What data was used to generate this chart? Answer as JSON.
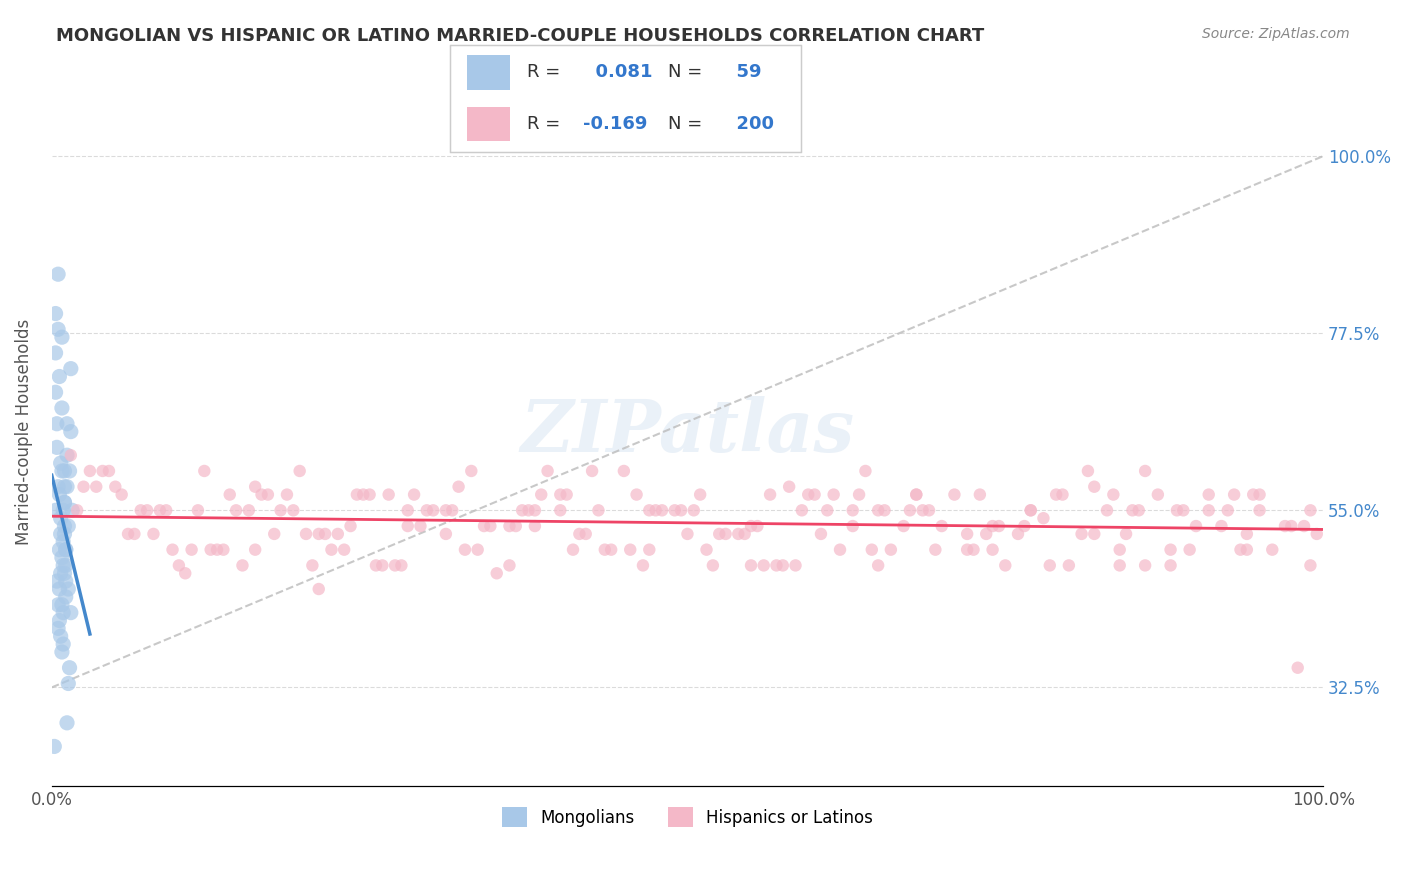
{
  "title": "MONGOLIAN VS HISPANIC OR LATINO MARRIED-COUPLE HOUSEHOLDS CORRELATION CHART",
  "source": "Source: ZipAtlas.com",
  "xlabel": "",
  "ylabel": "Married-couple Households",
  "xlim": [
    0.0,
    100.0
  ],
  "ylim": [
    20.0,
    110.0
  ],
  "ytick_labels": [
    "32.5%",
    "55.0%",
    "77.5%",
    "100.0%"
  ],
  "ytick_values": [
    32.5,
    55.0,
    77.5,
    100.0
  ],
  "xtick_labels": [
    "0.0%",
    "100.0%"
  ],
  "xtick_values": [
    0.0,
    100.0
  ],
  "legend_R_mongolian": "0.081",
  "legend_N_mongolian": "59",
  "legend_R_hispanic": "-0.169",
  "legend_N_hispanic": "200",
  "color_mongolian": "#a8c8e8",
  "color_hispanic": "#f4b8c8",
  "color_mongolian_line": "#4488cc",
  "color_hispanic_line": "#ee4466",
  "color_diag_line": "#bbbbbb",
  "background_color": "#ffffff",
  "watermark": "ZIPatlas",
  "mongolian_x": [
    0.5,
    0.8,
    1.0,
    1.2,
    1.5,
    0.3,
    0.6,
    0.9,
    1.1,
    1.4,
    0.4,
    0.7,
    1.0,
    1.3,
    1.6,
    0.5,
    0.8,
    1.1,
    0.2,
    0.9,
    1.0,
    0.6,
    1.2,
    0.8,
    1.5,
    0.3,
    0.7,
    1.0,
    0.5,
    0.9,
    1.1,
    0.4,
    0.6,
    1.3,
    0.8,
    1.0,
    0.7,
    1.2,
    0.5,
    0.9,
    1.4,
    0.6,
    0.8,
    1.1,
    0.3,
    0.7,
    1.0,
    1.3,
    0.5,
    1.2,
    0.8,
    0.4,
    1.5,
    0.9,
    0.6,
    1.1,
    0.7,
    0.3,
    1.0
  ],
  "mongolian_y": [
    85.0,
    77.0,
    60.0,
    58.0,
    65.0,
    70.0,
    50.0,
    55.0,
    48.0,
    60.0,
    63.0,
    52.0,
    47.0,
    45.0,
    55.0,
    58.0,
    43.0,
    50.0,
    25.0,
    48.0,
    52.0,
    57.0,
    62.0,
    68.0,
    42.0,
    55.0,
    47.0,
    53.0,
    40.0,
    38.0,
    44.0,
    46.0,
    72.0,
    53.0,
    49.0,
    56.0,
    61.0,
    66.0,
    78.0,
    42.0,
    35.0,
    45.0,
    37.0,
    50.0,
    80.0,
    54.0,
    58.0,
    33.0,
    43.0,
    28.0,
    60.0,
    66.0,
    73.0,
    51.0,
    41.0,
    46.0,
    39.0,
    75.0,
    56.0
  ],
  "hispanic_x": [
    2.0,
    5.0,
    8.0,
    12.0,
    15.0,
    18.0,
    22.0,
    25.0,
    28.0,
    32.0,
    35.0,
    38.0,
    42.0,
    45.0,
    48.0,
    52.0,
    55.0,
    58.0,
    62.0,
    65.0,
    68.0,
    72.0,
    75.0,
    78.0,
    82.0,
    85.0,
    88.0,
    92.0,
    95.0,
    98.0,
    3.0,
    7.0,
    11.0,
    16.0,
    20.0,
    24.0,
    27.0,
    31.0,
    36.0,
    39.0,
    43.0,
    47.0,
    51.0,
    54.0,
    57.0,
    61.0,
    64.0,
    67.0,
    71.0,
    74.0,
    77.0,
    81.0,
    84.0,
    87.0,
    91.0,
    94.0,
    97.0,
    4.0,
    9.0,
    13.0,
    17.0,
    21.0,
    26.0,
    30.0,
    34.0,
    40.0,
    44.0,
    49.0,
    53.0,
    56.0,
    60.0,
    63.0,
    66.0,
    70.0,
    73.0,
    76.0,
    80.0,
    83.0,
    86.0,
    90.0,
    93.0,
    96.0,
    99.0,
    6.0,
    10.0,
    14.0,
    19.0,
    23.0,
    29.0,
    33.0,
    37.0,
    41.0,
    46.0,
    50.0,
    55.0,
    59.0,
    63.0,
    68.0,
    72.0,
    77.0,
    82.0,
    86.0,
    91.0,
    95.0,
    2.5,
    6.5,
    10.5,
    15.5,
    19.5,
    23.5,
    28.5,
    32.5,
    37.5,
    41.5,
    46.5,
    50.5,
    55.5,
    59.5,
    64.5,
    68.5,
    73.5,
    78.5,
    83.5,
    88.5,
    93.5,
    98.5,
    4.5,
    8.5,
    13.5,
    18.5,
    22.5,
    27.5,
    31.5,
    36.5,
    40.5,
    45.5,
    49.5,
    54.5,
    58.5,
    63.5,
    67.5,
    72.5,
    76.5,
    81.5,
    85.5,
    89.5,
    94.5,
    99.5,
    3.5,
    7.5,
    12.5,
    16.5,
    21.5,
    25.5,
    29.5,
    34.5,
    38.5,
    43.5,
    47.5,
    52.5,
    57.5,
    61.5,
    65.5,
    69.5,
    74.5,
    79.5,
    84.5,
    88.0,
    92.5,
    97.5,
    5.5,
    9.5,
    14.5,
    17.5,
    20.5,
    24.5,
    28.0,
    33.5,
    38.0,
    42.5,
    47.0,
    51.5,
    56.5,
    60.5,
    65.0,
    69.0,
    74.0,
    79.0,
    84.0,
    89.0,
    94.0,
    99.0,
    1.5,
    11.5,
    16.0,
    21.0,
    26.5,
    31.0,
    36.0,
    40.0
  ],
  "hispanic_y": [
    55.0,
    58.0,
    52.0,
    60.0,
    48.0,
    55.0,
    50.0,
    57.0,
    53.0,
    58.0,
    47.0,
    55.0,
    52.0,
    60.0,
    55.0,
    48.0,
    53.0,
    58.0,
    50.0,
    55.0,
    57.0,
    52.0,
    48.0,
    54.0,
    58.0,
    55.0,
    50.0,
    53.0,
    57.0,
    35.0,
    60.0,
    55.0,
    50.0,
    58.0,
    52.0,
    57.0,
    48.0,
    55.0,
    53.0,
    60.0,
    55.0,
    50.0,
    57.0,
    52.0,
    48.0,
    55.0,
    60.0,
    53.0,
    57.0,
    50.0,
    55.0,
    52.0,
    48.0,
    57.0,
    55.0,
    50.0,
    53.0,
    60.0,
    55.0,
    50.0,
    57.0,
    52.0,
    48.0,
    55.0,
    53.0,
    57.0,
    50.0,
    55.0,
    52.0,
    48.0,
    57.0,
    55.0,
    50.0,
    53.0,
    57.0,
    52.0,
    48.0,
    55.0,
    60.0,
    53.0,
    57.0,
    50.0,
    55.0,
    52.0,
    48.0,
    57.0,
    55.0,
    50.0,
    53.0,
    60.0,
    55.0,
    50.0,
    57.0,
    52.0,
    48.0,
    55.0,
    53.0,
    57.0,
    50.0,
    55.0,
    52.0,
    48.0,
    57.0,
    55.0,
    58.0,
    52.0,
    47.0,
    55.0,
    60.0,
    53.0,
    57.0,
    50.0,
    55.0,
    52.0,
    48.0,
    55.0,
    53.0,
    57.0,
    50.0,
    55.0,
    52.0,
    48.0,
    57.0,
    55.0,
    50.0,
    53.0,
    60.0,
    55.0,
    50.0,
    57.0,
    52.0,
    48.0,
    55.0,
    53.0,
    57.0,
    50.0,
    55.0,
    52.0,
    48.0,
    57.0,
    55.0,
    50.0,
    53.0,
    60.0,
    55.0,
    50.0,
    57.0,
    52.0,
    58.0,
    55.0,
    50.0,
    57.0,
    52.0,
    48.0,
    55.0,
    53.0,
    57.0,
    50.0,
    55.0,
    52.0,
    48.0,
    57.0,
    55.0,
    50.0,
    53.0,
    57.0,
    52.0,
    48.0,
    55.0,
    53.0,
    57.0,
    50.0,
    55.0,
    52.0,
    48.0,
    57.0,
    55.0,
    50.0,
    53.0,
    60.0,
    55.0,
    50.0,
    57.0,
    52.0,
    48.0,
    55.0,
    53.0,
    57.0,
    50.0,
    55.0,
    52.0,
    48.0,
    62.0,
    55.0,
    50.0,
    45.0,
    57.0,
    52.0,
    48.0,
    55.0
  ]
}
